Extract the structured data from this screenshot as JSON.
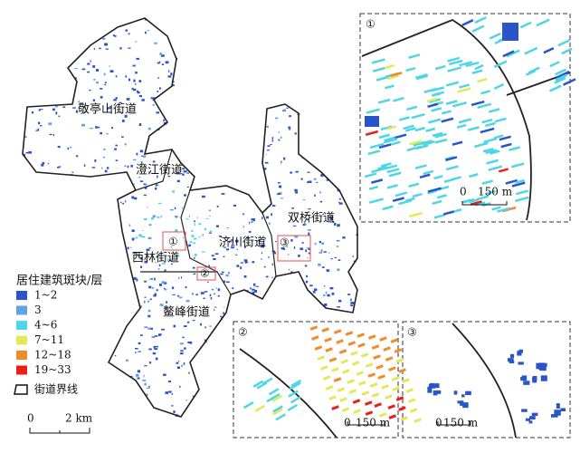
{
  "map": {
    "districts": [
      "敬亭山街道",
      "澄江街道",
      "双桥街道",
      "济川街道",
      "西林街道",
      "鳌峰街道"
    ],
    "legend": {
      "title": "居住建筑斑块/层",
      "items": [
        {
          "label": "1~2",
          "color": "#2a55c8"
        },
        {
          "label": "3",
          "color": "#5fa3e6"
        },
        {
          "label": "4~6",
          "color": "#4fd6e6"
        },
        {
          "label": "7~11",
          "color": "#e4e85a"
        },
        {
          "label": "12~18",
          "color": "#f08c2a"
        },
        {
          "label": "19~33",
          "color": "#e8201c"
        }
      ],
      "boundary": "街道界线"
    },
    "scale": {
      "zero": "0",
      "label": "2 km"
    },
    "insets": [
      {
        "marker": "①",
        "scale_zero": "0",
        "scale_label": "150 m"
      },
      {
        "marker": "②",
        "scale_zero": "0",
        "scale_label": "150 m"
      },
      {
        "marker": "③",
        "scale_zero": "0",
        "scale_label": "150 m"
      }
    ]
  }
}
